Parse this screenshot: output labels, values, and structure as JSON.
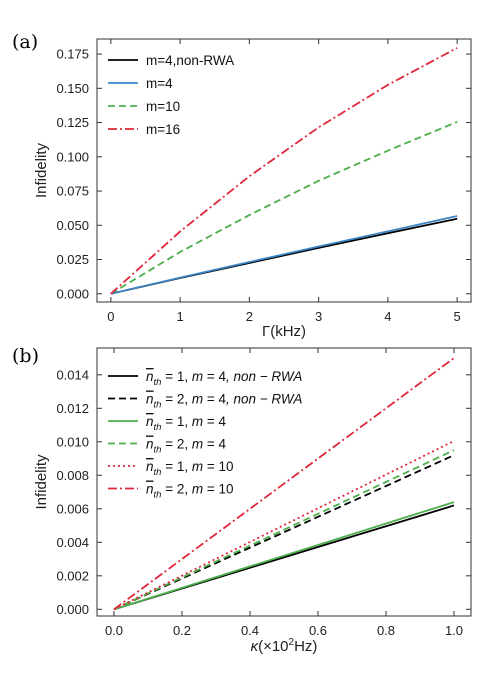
{
  "chart_data": [
    {
      "type": "line",
      "panel_label": "(a)",
      "title": "",
      "xlabel": "Γ(kHz)",
      "ylabel": "Infidelity",
      "xlim": [
        -0.2,
        5.2
      ],
      "ylim": [
        -0.006,
        0.186
      ],
      "x_ticks": [
        0,
        1,
        2,
        3,
        4,
        5
      ],
      "x_tick_labels": [
        "0",
        "1",
        "2",
        "3",
        "4",
        "5"
      ],
      "y_ticks": [
        0.0,
        0.025,
        0.05,
        0.075,
        0.1,
        0.125,
        0.15,
        0.175
      ],
      "y_tick_labels": [
        "0.000",
        "0.025",
        "0.050",
        "0.075",
        "0.100",
        "0.125",
        "0.150",
        "0.175"
      ],
      "grid": false,
      "legend_position": "top-left",
      "x": [
        0,
        1,
        2,
        3,
        4,
        5
      ],
      "series": [
        {
          "name": "m=4,non-RWA",
          "color": "#000000",
          "dash": "solid",
          "values": [
            0.0,
            0.0115,
            0.0225,
            0.0335,
            0.0442,
            0.0548
          ]
        },
        {
          "name": "m=4",
          "color": "#3a86c8",
          "dash": "solid",
          "values": [
            0.0,
            0.0118,
            0.0232,
            0.0345,
            0.0456,
            0.0568
          ]
        },
        {
          "name": "m=10",
          "color": "#4daf4a",
          "dash": "dashed",
          "values": [
            0.0,
            0.0305,
            0.0575,
            0.0825,
            0.1045,
            0.1255
          ]
        },
        {
          "name": "m=16",
          "color": "#e0263a",
          "dash": "dashdot",
          "values": [
            0.0,
            0.0455,
            0.0858,
            0.1215,
            0.1525,
            0.1795
          ]
        }
      ]
    },
    {
      "type": "line",
      "panel_label": "(b)",
      "title": "",
      "xlabel_symbol": "κ",
      "xlabel_rest": "(×10",
      "xlabel_exp": "2",
      "xlabel_unit": "Hz)",
      "ylabel": "Infidelity",
      "xlim": [
        -0.05,
        1.05
      ],
      "ylim": [
        -0.0004,
        0.0156
      ],
      "x_ticks": [
        0.0,
        0.2,
        0.4,
        0.6,
        0.8,
        1.0
      ],
      "x_tick_labels": [
        "0.0",
        "0.2",
        "0.4",
        "0.6",
        "0.8",
        "1.0"
      ],
      "y_ticks": [
        0.0,
        0.002,
        0.004,
        0.006,
        0.008,
        0.01,
        0.012,
        0.014
      ],
      "y_tick_labels": [
        "0.000",
        "0.002",
        "0.004",
        "0.006",
        "0.008",
        "0.010",
        "0.012",
        "0.014"
      ],
      "grid": false,
      "legend_position": "top-left",
      "x": [
        0.0,
        0.2,
        0.4,
        0.6,
        0.8,
        1.0
      ],
      "series": [
        {
          "name": "n̄th = 1, m = 4, non − RWA",
          "nth": "1",
          "m": "4",
          "suffix": ", non − RWA",
          "color": "#000000",
          "dash": "solid",
          "values": [
            0.0,
            0.00124,
            0.00248,
            0.00372,
            0.00496,
            0.0062
          ]
        },
        {
          "name": "n̄th = 2, m = 4, non − RWA",
          "nth": "2",
          "m": "4",
          "suffix": ", non − RWA",
          "color": "#000000",
          "dash": "dashed",
          "values": [
            0.0,
            0.00184,
            0.00368,
            0.00552,
            0.00736,
            0.0092
          ]
        },
        {
          "name": "n̄th = 1, m = 4",
          "nth": "1",
          "m": "4",
          "suffix": "",
          "color": "#4daf4a",
          "dash": "solid",
          "values": [
            0.0,
            0.00128,
            0.00256,
            0.00384,
            0.00512,
            0.0064
          ]
        },
        {
          "name": "n̄th = 2, m = 4",
          "nth": "2",
          "m": "4",
          "suffix": "",
          "color": "#4daf4a",
          "dash": "dashed",
          "values": [
            0.0,
            0.0019,
            0.0038,
            0.0057,
            0.0076,
            0.0095
          ]
        },
        {
          "name": "n̄th = 1, m = 10",
          "nth": "1",
          "m": "10",
          "suffix": "",
          "color": "#e0263a",
          "dash": "dotted",
          "values": [
            0.0,
            0.00201,
            0.00402,
            0.00603,
            0.00804,
            0.01005
          ]
        },
        {
          "name": "n̄th = 2, m = 10",
          "nth": "2",
          "m": "10",
          "suffix": "",
          "color": "#e0263a",
          "dash": "dashdot",
          "values": [
            0.0,
            0.003,
            0.006,
            0.009,
            0.012,
            0.015
          ]
        }
      ]
    }
  ]
}
